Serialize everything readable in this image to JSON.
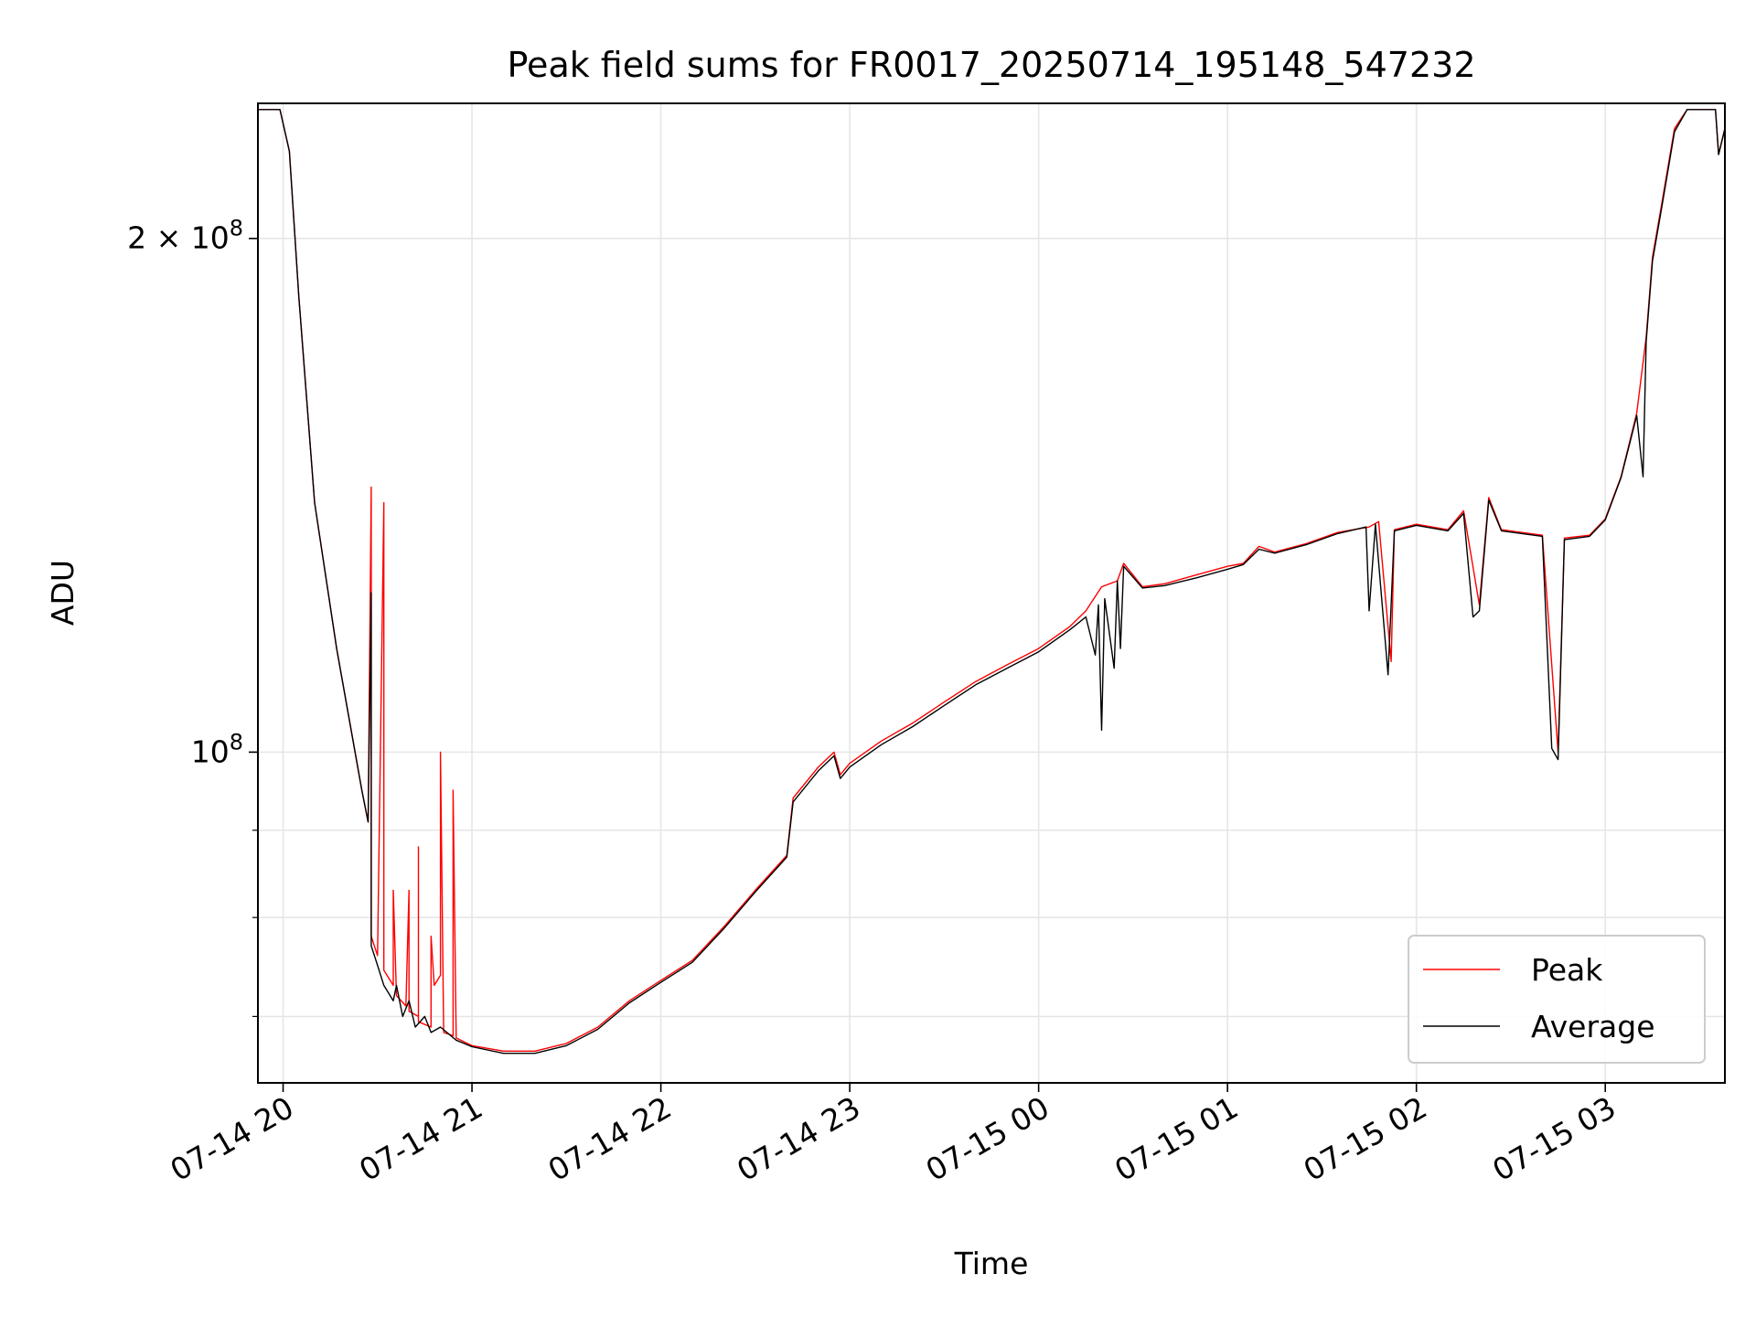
{
  "chart_data": {
    "type": "line",
    "title": "Peak field sums for FR0017_20250714_195148_547232",
    "xlabel": "Time",
    "ylabel": "ADU",
    "y_scale": "log",
    "grid": true,
    "legend_placement": "lower-right",
    "xlim": [
      "2025-07-14 19:52",
      "2025-07-15 03:38"
    ],
    "ylim": [
      64000000,
      240000000
    ],
    "x_ticks": [
      "2025-07-14 20:00",
      "2025-07-14 21:00",
      "2025-07-14 22:00",
      "2025-07-14 23:00",
      "2025-07-15 00:00",
      "2025-07-15 01:00",
      "2025-07-15 02:00",
      "2025-07-15 03:00"
    ],
    "x_tick_labels": [
      "07-14 20",
      "07-14 21",
      "07-14 22",
      "07-14 23",
      "07-15 00",
      "07-15 01",
      "07-15 02",
      "07-15 03"
    ],
    "y_major_ticks": [
      {
        "value": 100000000,
        "mantissa": "",
        "times": "",
        "base": "10",
        "exp": "8"
      },
      {
        "value": 200000000,
        "mantissa": "2",
        "times": "×",
        "base": "10",
        "exp": "8"
      }
    ],
    "y_minor_ticks": [
      70000000,
      80000000,
      90000000
    ],
    "series": [
      {
        "name": "Peak",
        "color": "#ff0000",
        "points": [
          [
            "2025-07-14 19:52",
            238000000
          ],
          [
            "2025-07-14 19:59",
            238000000
          ],
          [
            "2025-07-14 20:02",
            225000000
          ],
          [
            "2025-07-14 20:05",
            185000000
          ],
          [
            "2025-07-14 20:10",
            140000000
          ],
          [
            "2025-07-14 20:17",
            115000000
          ],
          [
            "2025-07-14 20:25",
            95000000
          ],
          [
            "2025-07-14 20:27",
            91000000
          ],
          [
            "2025-07-14 20:28",
            143000000
          ],
          [
            "2025-07-14 20:28",
            86000000
          ],
          [
            "2025-07-14 20:28",
            78000000
          ],
          [
            "2025-07-14 20:30",
            76000000
          ],
          [
            "2025-07-14 20:32",
            140000000
          ],
          [
            "2025-07-14 20:32",
            74500000
          ],
          [
            "2025-07-14 20:35",
            73000000
          ],
          [
            "2025-07-14 20:35",
            83000000
          ],
          [
            "2025-07-14 20:36",
            72000000
          ],
          [
            "2025-07-14 20:39",
            71000000
          ],
          [
            "2025-07-14 20:40",
            83000000
          ],
          [
            "2025-07-14 20:40",
            70500000
          ],
          [
            "2025-07-14 20:43",
            70000000
          ],
          [
            "2025-07-14 20:43",
            88000000
          ],
          [
            "2025-07-14 20:43",
            69500000
          ],
          [
            "2025-07-14 20:47",
            69000000
          ],
          [
            "2025-07-14 20:47",
            78000000
          ],
          [
            "2025-07-14 20:48",
            73000000
          ],
          [
            "2025-07-14 20:50",
            74000000
          ],
          [
            "2025-07-14 20:50",
            100000000
          ],
          [
            "2025-07-14 20:51",
            68500000
          ],
          [
            "2025-07-14 20:54",
            68200000
          ],
          [
            "2025-07-14 20:54",
            95000000
          ],
          [
            "2025-07-14 20:55",
            68000000
          ],
          [
            "2025-07-14 21:00",
            67300000
          ],
          [
            "2025-07-14 21:10",
            66800000
          ],
          [
            "2025-07-14 21:20",
            66800000
          ],
          [
            "2025-07-14 21:30",
            67500000
          ],
          [
            "2025-07-14 21:40",
            69000000
          ],
          [
            "2025-07-14 21:50",
            71500000
          ],
          [
            "2025-07-14 22:00",
            73500000
          ],
          [
            "2025-07-14 22:10",
            75500000
          ],
          [
            "2025-07-14 22:20",
            79000000
          ],
          [
            "2025-07-14 22:30",
            83000000
          ],
          [
            "2025-07-14 22:40",
            87000000
          ],
          [
            "2025-07-14 22:42",
            94000000
          ],
          [
            "2025-07-14 22:50",
            98000000
          ],
          [
            "2025-07-14 22:55",
            100000000
          ],
          [
            "2025-07-14 22:57",
            97000000
          ],
          [
            "2025-07-14 23:00",
            98500000
          ],
          [
            "2025-07-14 23:10",
            101500000
          ],
          [
            "2025-07-14 23:20",
            104000000
          ],
          [
            "2025-07-14 23:30",
            107000000
          ],
          [
            "2025-07-14 23:40",
            110000000
          ],
          [
            "2025-07-14 23:50",
            112500000
          ],
          [
            "2025-07-15 00:00",
            115000000
          ],
          [
            "2025-07-15 00:10",
            118500000
          ],
          [
            "2025-07-15 00:15",
            121000000
          ],
          [
            "2025-07-15 00:20",
            125000000
          ],
          [
            "2025-07-15 00:25",
            126000000
          ],
          [
            "2025-07-15 00:27",
            129000000
          ],
          [
            "2025-07-15 00:33",
            125000000
          ],
          [
            "2025-07-15 00:40",
            125500000
          ],
          [
            "2025-07-15 00:50",
            127000000
          ],
          [
            "2025-07-15 01:00",
            128500000
          ],
          [
            "2025-07-15 01:05",
            129000000
          ],
          [
            "2025-07-15 01:10",
            132000000
          ],
          [
            "2025-07-15 01:15",
            131000000
          ],
          [
            "2025-07-15 01:25",
            132500000
          ],
          [
            "2025-07-15 01:35",
            134500000
          ],
          [
            "2025-07-15 01:45",
            135500000
          ],
          [
            "2025-07-15 01:48",
            136500000
          ],
          [
            "2025-07-15 01:52",
            113000000
          ],
          [
            "2025-07-15 01:53",
            135000000
          ],
          [
            "2025-07-15 02:00",
            136000000
          ],
          [
            "2025-07-15 02:10",
            135000000
          ],
          [
            "2025-07-15 02:15",
            138500000
          ],
          [
            "2025-07-15 02:20",
            122000000
          ],
          [
            "2025-07-15 02:23",
            141000000
          ],
          [
            "2025-07-15 02:27",
            135000000
          ],
          [
            "2025-07-15 02:40",
            134000000
          ],
          [
            "2025-07-15 02:45",
            100000000
          ],
          [
            "2025-07-15 02:47",
            133500000
          ],
          [
            "2025-07-15 02:55",
            134000000
          ],
          [
            "2025-07-15 03:00",
            137000000
          ],
          [
            "2025-07-15 03:05",
            145000000
          ],
          [
            "2025-07-15 03:10",
            158000000
          ],
          [
            "2025-07-15 03:13",
            175000000
          ],
          [
            "2025-07-15 03:15",
            195000000
          ],
          [
            "2025-07-15 03:18",
            210000000
          ],
          [
            "2025-07-15 03:22",
            232000000
          ],
          [
            "2025-07-15 03:26",
            238000000
          ],
          [
            "2025-07-15 03:35",
            238000000
          ],
          [
            "2025-07-15 03:36",
            224000000
          ],
          [
            "2025-07-15 03:38",
            232000000
          ]
        ]
      },
      {
        "name": "Average",
        "color": "#000000",
        "points": [
          [
            "2025-07-14 19:52",
            238000000
          ],
          [
            "2025-07-14 19:59",
            238000000
          ],
          [
            "2025-07-14 20:02",
            225000000
          ],
          [
            "2025-07-14 20:05",
            185000000
          ],
          [
            "2025-07-14 20:10",
            140000000
          ],
          [
            "2025-07-14 20:17",
            115000000
          ],
          [
            "2025-07-14 20:25",
            95000000
          ],
          [
            "2025-07-14 20:27",
            91000000
          ],
          [
            "2025-07-14 20:28",
            124000000
          ],
          [
            "2025-07-14 20:28",
            77000000
          ],
          [
            "2025-07-14 20:30",
            75000000
          ],
          [
            "2025-07-14 20:32",
            73000000
          ],
          [
            "2025-07-14 20:35",
            71500000
          ],
          [
            "2025-07-14 20:36",
            73000000
          ],
          [
            "2025-07-14 20:38",
            70000000
          ],
          [
            "2025-07-14 20:40",
            71500000
          ],
          [
            "2025-07-14 20:42",
            69000000
          ],
          [
            "2025-07-14 20:45",
            70000000
          ],
          [
            "2025-07-14 20:47",
            68500000
          ],
          [
            "2025-07-14 20:50",
            69000000
          ],
          [
            "2025-07-14 20:55",
            67800000
          ],
          [
            "2025-07-14 21:00",
            67200000
          ],
          [
            "2025-07-14 21:10",
            66600000
          ],
          [
            "2025-07-14 21:20",
            66600000
          ],
          [
            "2025-07-14 21:30",
            67300000
          ],
          [
            "2025-07-14 21:40",
            68800000
          ],
          [
            "2025-07-14 21:50",
            71300000
          ],
          [
            "2025-07-14 22:00",
            73300000
          ],
          [
            "2025-07-14 22:10",
            75300000
          ],
          [
            "2025-07-14 22:20",
            78800000
          ],
          [
            "2025-07-14 22:30",
            82800000
          ],
          [
            "2025-07-14 22:40",
            86800000
          ],
          [
            "2025-07-14 22:42",
            93500000
          ],
          [
            "2025-07-14 22:50",
            97500000
          ],
          [
            "2025-07-14 22:55",
            99500000
          ],
          [
            "2025-07-14 22:57",
            96500000
          ],
          [
            "2025-07-14 23:00",
            98000000
          ],
          [
            "2025-07-14 23:10",
            101000000
          ],
          [
            "2025-07-14 23:20",
            103500000
          ],
          [
            "2025-07-14 23:30",
            106500000
          ],
          [
            "2025-07-14 23:40",
            109500000
          ],
          [
            "2025-07-14 23:50",
            112000000
          ],
          [
            "2025-07-15 00:00",
            114500000
          ],
          [
            "2025-07-15 00:10",
            118000000
          ],
          [
            "2025-07-15 00:15",
            120000000
          ],
          [
            "2025-07-15 00:18",
            114000000
          ],
          [
            "2025-07-15 00:19",
            122000000
          ],
          [
            "2025-07-15 00:20",
            103000000
          ],
          [
            "2025-07-15 00:21",
            123000000
          ],
          [
            "2025-07-15 00:24",
            112000000
          ],
          [
            "2025-07-15 00:25",
            126000000
          ],
          [
            "2025-07-15 00:26",
            115000000
          ],
          [
            "2025-07-15 00:27",
            128500000
          ],
          [
            "2025-07-15 00:33",
            124800000
          ],
          [
            "2025-07-15 00:40",
            125200000
          ],
          [
            "2025-07-15 00:50",
            126500000
          ],
          [
            "2025-07-15 01:00",
            128000000
          ],
          [
            "2025-07-15 01:05",
            128800000
          ],
          [
            "2025-07-15 01:10",
            131500000
          ],
          [
            "2025-07-15 01:15",
            130800000
          ],
          [
            "2025-07-15 01:25",
            132300000
          ],
          [
            "2025-07-15 01:35",
            134300000
          ],
          [
            "2025-07-15 01:44",
            135500000
          ],
          [
            "2025-07-15 01:45",
            121000000
          ],
          [
            "2025-07-15 01:47",
            136000000
          ],
          [
            "2025-07-15 01:51",
            111000000
          ],
          [
            "2025-07-15 01:53",
            134800000
          ],
          [
            "2025-07-15 02:00",
            135800000
          ],
          [
            "2025-07-15 02:10",
            134800000
          ],
          [
            "2025-07-15 02:15",
            138000000
          ],
          [
            "2025-07-15 02:18",
            120000000
          ],
          [
            "2025-07-15 02:20",
            121000000
          ],
          [
            "2025-07-15 02:23",
            140500000
          ],
          [
            "2025-07-15 02:27",
            134800000
          ],
          [
            "2025-07-15 02:40",
            133800000
          ],
          [
            "2025-07-15 02:43",
            100500000
          ],
          [
            "2025-07-15 02:45",
            99000000
          ],
          [
            "2025-07-15 02:47",
            133200000
          ],
          [
            "2025-07-15 02:55",
            133800000
          ],
          [
            "2025-07-15 03:00",
            136800000
          ],
          [
            "2025-07-15 03:05",
            144800000
          ],
          [
            "2025-07-15 03:10",
            157500000
          ],
          [
            "2025-07-15 03:12",
            145000000
          ],
          [
            "2025-07-15 03:13",
            174000000
          ],
          [
            "2025-07-15 03:15",
            194000000
          ],
          [
            "2025-07-15 03:18",
            209000000
          ],
          [
            "2025-07-15 03:22",
            231000000
          ],
          [
            "2025-07-15 03:26",
            238000000
          ],
          [
            "2025-07-15 03:35",
            238000000
          ],
          [
            "2025-07-15 03:36",
            224000000
          ],
          [
            "2025-07-15 03:38",
            232000000
          ]
        ]
      }
    ]
  }
}
